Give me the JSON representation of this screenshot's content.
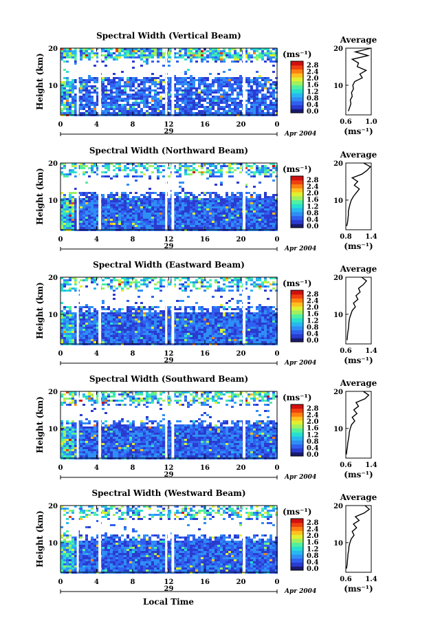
{
  "figure": {
    "date_label": "Apr 2004",
    "day_label": "29",
    "time_axis_label": "Local Time",
    "height_axis_label": "Height (km)",
    "colorbar_unit": "(ms⁻¹)",
    "average_title": "Average",
    "average_unit": "(ms⁻¹)"
  },
  "colorbar": {
    "ticks": [
      "2.8",
      "2.4",
      "2.0",
      "1.6",
      "1.2",
      "0.8",
      "0.4",
      "0.0"
    ],
    "colors": [
      "#1a1a6e",
      "#2a3bd0",
      "#3060f0",
      "#2f8ef5",
      "#28b8f0",
      "#26e0d0",
      "#50f0a0",
      "#a0f060",
      "#e0f030",
      "#ffc020",
      "#ff8010",
      "#f04010",
      "#d01010"
    ]
  },
  "chart_data": [
    {
      "type": "heatmap",
      "title": "Spectral Width (Vertical Beam)",
      "xlabel": "",
      "ylabel": "Height (km)",
      "xlim": [
        0,
        24
      ],
      "ylim": [
        2,
        20
      ],
      "x_ticks": [
        "0",
        "4",
        "8",
        "12",
        "16",
        "20",
        "0"
      ],
      "y_ticks": [
        "20",
        "10"
      ],
      "data_gaps_hours": [
        [
          1.8,
          2.0
        ],
        [
          4.2,
          4.5
        ],
        [
          11.6,
          11.8
        ],
        [
          12.3,
          12.6
        ],
        [
          20.2,
          20.5
        ]
      ],
      "average_profile": {
        "title": "Average",
        "xlabel": "(ms⁻¹)",
        "x_ticks": [
          "0.6",
          "1.0"
        ],
        "y_ticks": [
          "20",
          "10"
        ],
        "xlim": [
          0.6,
          1.0
        ],
        "ylim": [
          2,
          20
        ],
        "height": [
          3,
          4,
          5,
          6,
          7,
          8,
          9,
          10,
          11,
          12,
          13,
          14,
          15,
          16,
          17,
          18,
          19,
          20
        ],
        "value": [
          0.64,
          0.66,
          0.68,
          0.67,
          0.7,
          0.69,
          0.72,
          0.71,
          0.74,
          0.86,
          0.82,
          0.92,
          0.78,
          0.8,
          0.7,
          0.95,
          0.75,
          1.0
        ]
      }
    },
    {
      "type": "heatmap",
      "title": "Spectral Width (Northward Beam)",
      "xlabel": "",
      "ylabel": "Height (km)",
      "xlim": [
        0,
        24
      ],
      "ylim": [
        2,
        20
      ],
      "x_ticks": [
        "0",
        "4",
        "8",
        "12",
        "16",
        "20",
        "0"
      ],
      "y_ticks": [
        "20",
        "10"
      ],
      "data_gaps_hours": [
        [
          1.8,
          2.0
        ],
        [
          4.2,
          4.5
        ],
        [
          11.6,
          11.8
        ],
        [
          12.3,
          12.6
        ],
        [
          20.2,
          20.5
        ]
      ],
      "average_profile": {
        "title": "Average",
        "xlabel": "(ms⁻¹)",
        "x_ticks": [
          "0.8",
          "1.4"
        ],
        "y_ticks": [
          "20",
          "10"
        ],
        "xlim": [
          0.8,
          1.4
        ],
        "ylim": [
          2,
          20
        ],
        "height": [
          3,
          4,
          5,
          6,
          7,
          8,
          9,
          10,
          11,
          12,
          13,
          14,
          15,
          16,
          17,
          18,
          19,
          20
        ],
        "value": [
          0.82,
          0.84,
          0.85,
          0.86,
          0.86,
          0.88,
          0.9,
          0.93,
          0.98,
          1.05,
          1.12,
          1.0,
          1.08,
          0.95,
          1.18,
          1.3,
          1.38,
          1.22
        ]
      }
    },
    {
      "type": "heatmap",
      "title": "Spectral Width (Eastward Beam)",
      "xlabel": "",
      "ylabel": "Height (km)",
      "xlim": [
        0,
        24
      ],
      "ylim": [
        2,
        20
      ],
      "x_ticks": [
        "0",
        "4",
        "8",
        "12",
        "16",
        "20",
        "0"
      ],
      "y_ticks": [
        "20",
        "10"
      ],
      "data_gaps_hours": [
        [
          1.8,
          2.0
        ],
        [
          4.2,
          4.5
        ],
        [
          11.6,
          11.8
        ],
        [
          12.3,
          12.6
        ],
        [
          20.2,
          20.5
        ]
      ],
      "average_profile": {
        "title": "Average",
        "xlabel": "(ms⁻¹)",
        "x_ticks": [
          "0.6",
          "1.4"
        ],
        "y_ticks": [
          "20",
          "10"
        ],
        "xlim": [
          0.6,
          1.4
        ],
        "ylim": [
          2,
          20
        ],
        "height": [
          3,
          4,
          5,
          6,
          7,
          8,
          9,
          10,
          11,
          12,
          13,
          14,
          15,
          16,
          17,
          18,
          19,
          20
        ],
        "value": [
          0.64,
          0.65,
          0.66,
          0.68,
          0.69,
          0.7,
          0.72,
          0.76,
          0.8,
          0.9,
          0.84,
          0.98,
          0.92,
          1.05,
          1.0,
          1.15,
          1.25,
          1.1
        ]
      }
    },
    {
      "type": "heatmap",
      "title": "Spectral Width (Southward Beam)",
      "xlabel": "",
      "ylabel": "Height (km)",
      "xlim": [
        0,
        24
      ],
      "ylim": [
        2,
        20
      ],
      "x_ticks": [
        "0",
        "4",
        "8",
        "12",
        "16",
        "20",
        "0"
      ],
      "y_ticks": [
        "20",
        "10"
      ],
      "data_gaps_hours": [
        [
          1.8,
          2.0
        ],
        [
          4.2,
          4.5
        ],
        [
          11.6,
          11.8
        ],
        [
          12.3,
          12.6
        ],
        [
          20.2,
          20.5
        ]
      ],
      "average_profile": {
        "title": "Average",
        "xlabel": "(ms⁻¹)",
        "x_ticks": [
          "0.6",
          "1.4"
        ],
        "y_ticks": [
          "20",
          "10"
        ],
        "xlim": [
          0.6,
          1.4
        ],
        "ylim": [
          2,
          20
        ],
        "height": [
          3,
          4,
          5,
          6,
          7,
          8,
          9,
          10,
          11,
          12,
          13,
          14,
          15,
          16,
          17,
          18,
          19,
          20
        ],
        "value": [
          0.62,
          0.63,
          0.65,
          0.66,
          0.68,
          0.7,
          0.71,
          0.74,
          0.78,
          0.88,
          0.8,
          0.95,
          0.85,
          1.0,
          0.92,
          1.2,
          1.32,
          1.15
        ]
      }
    },
    {
      "type": "heatmap",
      "title": "Spectral Width (Westward Beam)",
      "xlabel": "Local Time",
      "ylabel": "Height (km)",
      "xlim": [
        0,
        24
      ],
      "ylim": [
        2,
        20
      ],
      "x_ticks": [
        "0",
        "4",
        "8",
        "12",
        "16",
        "20",
        "0"
      ],
      "y_ticks": [
        "20",
        "10"
      ],
      "data_gaps_hours": [
        [
          1.8,
          2.0
        ],
        [
          4.2,
          4.5
        ],
        [
          11.6,
          11.8
        ],
        [
          12.3,
          12.6
        ],
        [
          20.2,
          20.5
        ]
      ],
      "average_profile": {
        "title": "Average",
        "xlabel": "(ms⁻¹)",
        "x_ticks": [
          "0.6",
          "1.4"
        ],
        "y_ticks": [
          "20",
          "10"
        ],
        "xlim": [
          0.6,
          1.4
        ],
        "ylim": [
          2,
          20
        ],
        "height": [
          3,
          4,
          5,
          6,
          7,
          8,
          9,
          10,
          11,
          12,
          13,
          14,
          15,
          16,
          17,
          18,
          19,
          20
        ],
        "value": [
          0.62,
          0.64,
          0.65,
          0.66,
          0.67,
          0.69,
          0.7,
          0.73,
          0.77,
          0.86,
          0.8,
          0.94,
          0.84,
          1.02,
          0.9,
          1.18,
          1.34,
          1.2
        ]
      }
    }
  ]
}
